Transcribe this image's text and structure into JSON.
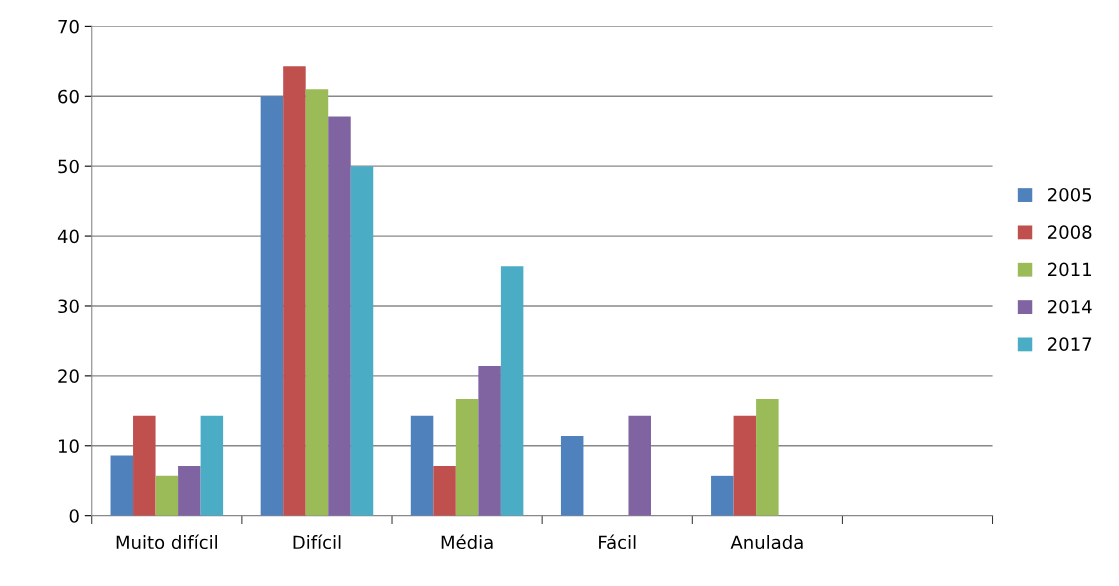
{
  "chart_data": {
    "type": "bar",
    "categories": [
      "Muito difícil",
      "Difícil",
      "Média",
      "Fácil",
      "Anulada",
      null
    ],
    "series": [
      {
        "name": "2005",
        "color": "#4f81bd",
        "values": [
          8.6,
          60,
          14.3,
          11.4,
          5.7,
          null
        ]
      },
      {
        "name": "2008",
        "color": "#c0504d",
        "values": [
          14.3,
          64.3,
          7.1,
          0,
          14.3,
          null
        ]
      },
      {
        "name": "2011",
        "color": "#9bbb59",
        "values": [
          5.7,
          61,
          16.7,
          0,
          16.7,
          null
        ]
      },
      {
        "name": "2014",
        "color": "#8064a2",
        "values": [
          7.1,
          57.1,
          21.4,
          14.3,
          0,
          null
        ]
      },
      {
        "name": "2017",
        "color": "#4bacc6",
        "values": [
          14.3,
          50,
          35.7,
          0,
          0,
          null
        ]
      }
    ],
    "ylim": [
      0,
      70
    ],
    "yticks": [
      0,
      10,
      20,
      30,
      40,
      50,
      60,
      70
    ],
    "grid": "y",
    "legend": "right"
  }
}
